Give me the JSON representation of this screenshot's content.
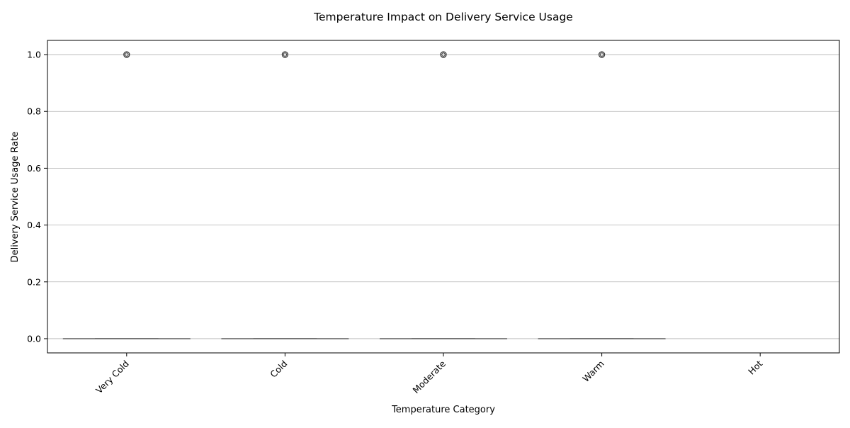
{
  "chart_data": {
    "type": "box",
    "title": "Temperature Impact on Delivery Service Usage",
    "xlabel": "Temperature Category",
    "ylabel": "Delivery Service Usage Rate",
    "categories": [
      "Very Cold",
      "Cold",
      "Moderate",
      "Warm",
      "Hot"
    ],
    "y_ticks": [
      "0.0",
      "0.2",
      "0.4",
      "0.6",
      "0.8",
      "1.0"
    ],
    "ylim": [
      -0.05,
      1.05
    ],
    "grid": "y",
    "x_tick_rotation_deg": 45,
    "boxes": [
      {
        "category": "Very Cold",
        "q1": 0,
        "median": 0,
        "q3": 0,
        "whisker_low": 0,
        "whisker_high": 0,
        "outliers": [
          1.0
        ]
      },
      {
        "category": "Cold",
        "q1": 0,
        "median": 0,
        "q3": 0,
        "whisker_low": 0,
        "whisker_high": 0,
        "outliers": [
          1.0
        ]
      },
      {
        "category": "Moderate",
        "q1": 0,
        "median": 0,
        "q3": 0,
        "whisker_low": 0,
        "whisker_high": 0,
        "outliers": [
          1.0
        ]
      },
      {
        "category": "Warm",
        "q1": 0,
        "median": 0,
        "q3": 0,
        "whisker_low": 0,
        "whisker_high": 0,
        "outliers": [
          1.0
        ]
      },
      {
        "category": "Hot",
        "q1": null,
        "median": null,
        "q3": null,
        "whisker_low": null,
        "whisker_high": null,
        "outliers": []
      }
    ],
    "colors": {
      "box_line": "#555555",
      "grid": "#b0b0b0",
      "axis": "#000000",
      "outlier": "#3a3a3a"
    }
  }
}
